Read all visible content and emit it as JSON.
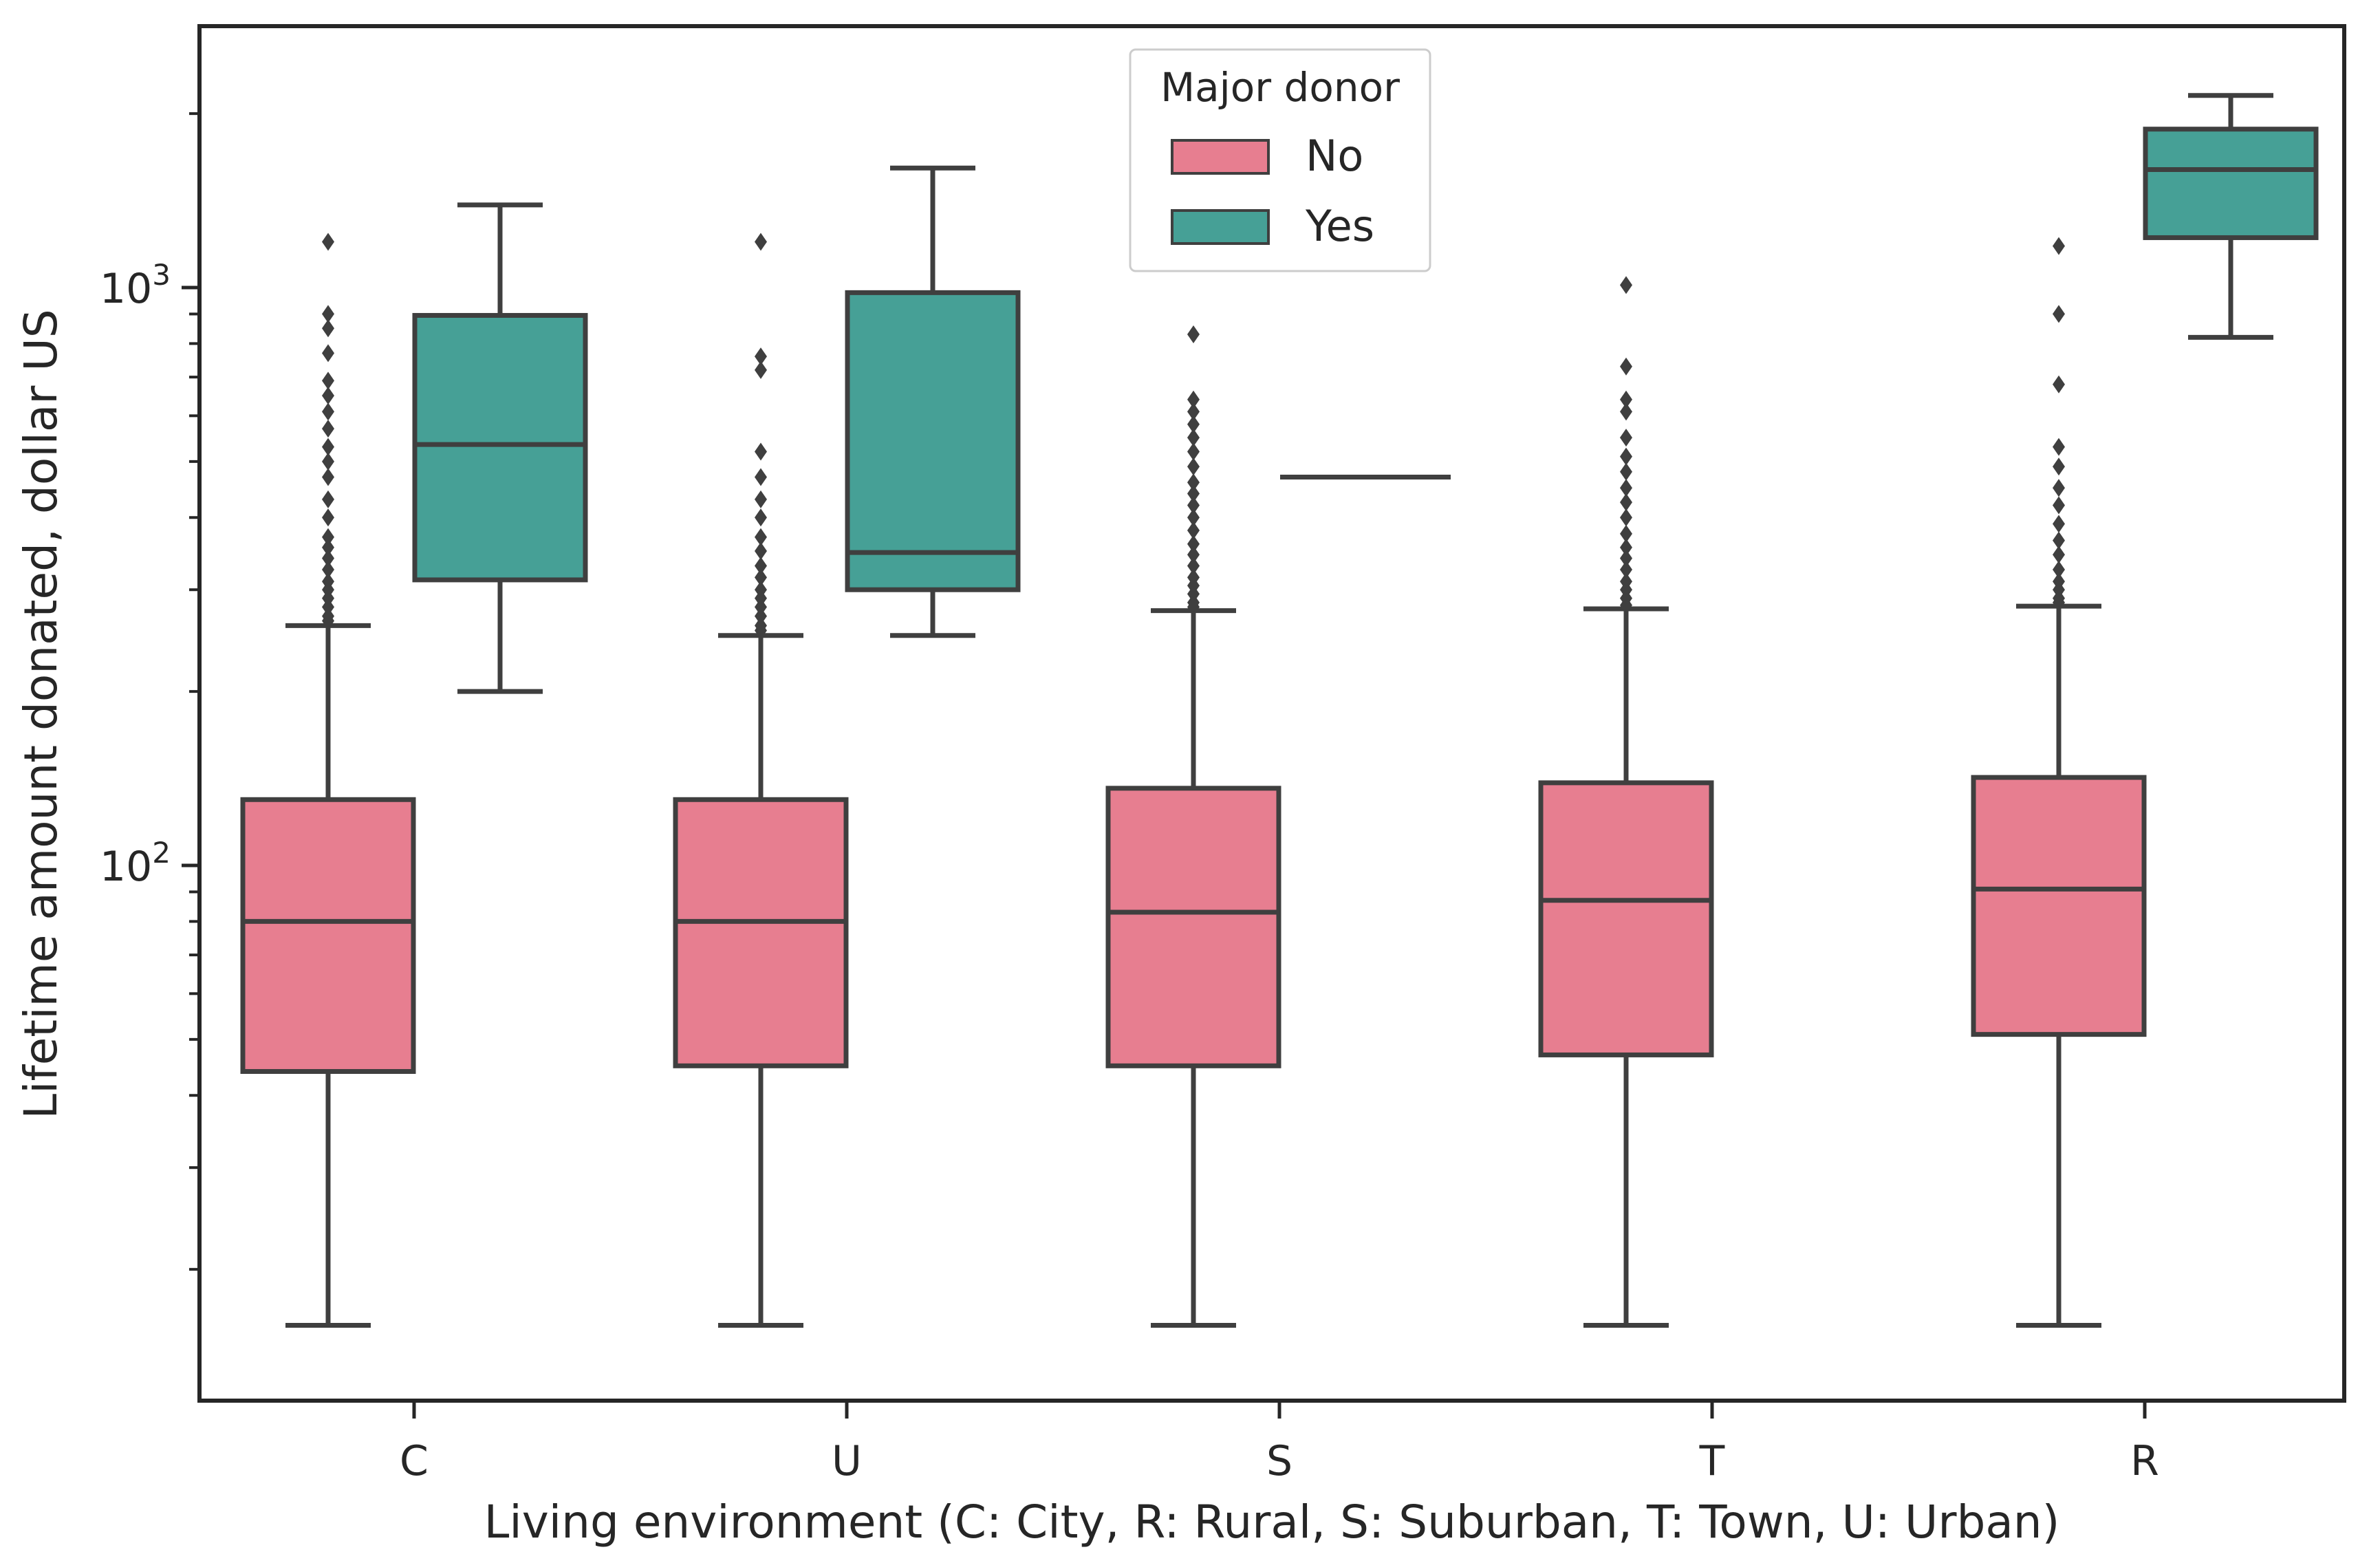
{
  "chart_data": {
    "type": "box",
    "xlabel": "Living environment (C: City, R: Rural, S: Suburban, T: Town, U: Urban)",
    "ylabel": "Lifetime amount donated, dollar US",
    "yscale": "log",
    "ylim": [
      13,
      3000
    ],
    "y_ticks": [
      {
        "base": "10",
        "exp": "2",
        "value": 100
      },
      {
        "base": "10",
        "exp": "3",
        "value": 1000
      }
    ],
    "categories": [
      "C",
      "U",
      "S",
      "T",
      "R"
    ],
    "legend": {
      "title": "Major donor",
      "position": "top-center"
    },
    "colors": {
      "No": "#e77e90",
      "Yes": "#46a096",
      "edge": "#3f3f3f"
    },
    "series": [
      {
        "name": "No",
        "boxes": [
          {
            "category": "C",
            "whislo": 16,
            "q1": 44,
            "med": 80,
            "q3": 130,
            "whishi": 260,
            "fliers": [
              265,
              270,
              280,
              290,
              300,
              310,
              325,
              340,
              355,
              370,
              400,
              430,
              470,
              500,
              530,
              570,
              610,
              650,
              690,
              770,
              850,
              900,
              1200
            ]
          },
          {
            "category": "U",
            "whislo": 16,
            "q1": 45,
            "med": 80,
            "q3": 130,
            "whishi": 250,
            "fliers": [
              255,
              260,
              270,
              280,
              290,
              300,
              315,
              330,
              350,
              370,
              400,
              430,
              470,
              520,
              720,
              760,
              1200
            ]
          },
          {
            "category": "S",
            "whislo": 16,
            "q1": 45,
            "med": 83,
            "q3": 136,
            "whishi": 276,
            "fliers": [
              280,
              285,
              295,
              305,
              315,
              330,
              345,
              360,
              380,
              400,
              420,
              440,
              460,
              490,
              520,
              550,
              580,
              610,
              640,
              830
            ]
          },
          {
            "category": "T",
            "whislo": 16,
            "q1": 47,
            "med": 87,
            "q3": 139,
            "whishi": 278,
            "fliers": [
              282,
              290,
              300,
              310,
              325,
              340,
              355,
              375,
              400,
              425,
              450,
              480,
              510,
              550,
              610,
              640,
              730,
              1010
            ]
          },
          {
            "category": "R",
            "whislo": 16,
            "q1": 51,
            "med": 91,
            "q3": 142,
            "whishi": 281,
            "fliers": [
              285,
              290,
              300,
              310,
              325,
              345,
              365,
              390,
              420,
              450,
              490,
              530,
              680,
              900,
              1180
            ]
          }
        ]
      },
      {
        "name": "Yes",
        "boxes": [
          {
            "category": "C",
            "whislo": 200,
            "q1": 312,
            "med": 535,
            "q3": 895,
            "whishi": 1390,
            "fliers": []
          },
          {
            "category": "U",
            "whislo": 250,
            "q1": 300,
            "med": 348,
            "q3": 980,
            "whishi": 1610,
            "fliers": []
          },
          {
            "category": "S",
            "whislo": 470,
            "q1": 470,
            "med": 470,
            "q3": 470,
            "whishi": 470,
            "fliers": []
          },
          {
            "category": "T",
            "whislo": null,
            "q1": null,
            "med": null,
            "q3": null,
            "whishi": null,
            "fliers": []
          },
          {
            "category": "R",
            "whislo": 820,
            "q1": 1220,
            "med": 1600,
            "q3": 1880,
            "whishi": 2150,
            "fliers": []
          }
        ]
      }
    ]
  }
}
